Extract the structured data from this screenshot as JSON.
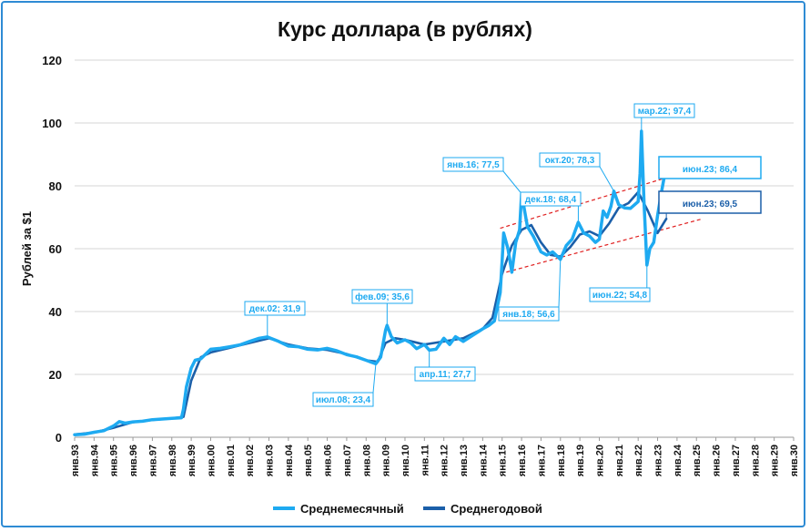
{
  "chart_data": {
    "type": "line",
    "title": "Курс доллара (в рублях)",
    "ylabel": "Рублей за $1",
    "xlabel": "",
    "ylim": [
      0,
      120
    ],
    "yticks": [
      0,
      20,
      40,
      60,
      80,
      100,
      120
    ],
    "grid": "horizontal",
    "legend": "bottom",
    "x_tick_labels": [
      "янв.93",
      "янв.94",
      "янв.95",
      "янв.96",
      "янв.97",
      "янв.98",
      "янв.99",
      "янв.00",
      "янв.01",
      "янв.02",
      "янв.03",
      "янв.04",
      "янв.05",
      "янв.06",
      "янв.07",
      "янв.08",
      "янв.09",
      "янв.10",
      "янв.11",
      "янв.12",
      "янв.13",
      "янв.14",
      "янв.15",
      "янв.16",
      "янв.17",
      "янв.18",
      "янв.19",
      "янв.20",
      "янв.21",
      "янв.22",
      "янв.23",
      "янв.24",
      "янв.25",
      "янв.26",
      "янв.27",
      "янв.28",
      "янв.29",
      "янв.30"
    ],
    "x_range": [
      1993,
      2030
    ],
    "series": [
      {
        "name": "Среднемесячный",
        "color": "#1eaaf1",
        "x": [
          1993.0,
          1993.5,
          1994.0,
          1994.5,
          1995.0,
          1995.3,
          1995.6,
          1996.0,
          1996.5,
          1997.0,
          1997.5,
          1998.0,
          1998.5,
          1998.6,
          1998.75,
          1999.0,
          1999.2,
          1999.5,
          2000.0,
          2000.5,
          2001.0,
          2001.5,
          2002.0,
          2002.5,
          2002.92,
          2003.5,
          2004.0,
          2004.5,
          2005.0,
          2005.5,
          2006.0,
          2006.5,
          2007.0,
          2007.5,
          2008.0,
          2008.3,
          2008.5,
          2008.75,
          2009.0,
          2009.08,
          2009.3,
          2009.6,
          2010.0,
          2010.3,
          2010.6,
          2011.0,
          2011.25,
          2011.6,
          2012.0,
          2012.3,
          2012.6,
          2013.0,
          2013.5,
          2014.0,
          2014.3,
          2014.6,
          2014.9,
          2015.0,
          2015.08,
          2015.3,
          2015.5,
          2015.7,
          2015.9,
          2016.0,
          2016.3,
          2016.6,
          2017.0,
          2017.3,
          2017.6,
          2018.0,
          2018.3,
          2018.6,
          2018.92,
          2019.2,
          2019.5,
          2019.8,
          2020.0,
          2020.2,
          2020.4,
          2020.6,
          2020.75,
          2021.0,
          2021.3,
          2021.6,
          2022.0,
          2022.1,
          2022.17,
          2022.3,
          2022.45,
          2022.6,
          2022.8,
          2023.0,
          2023.2,
          2023.45
        ],
        "y": [
          0.8,
          1.0,
          1.6,
          2.1,
          3.6,
          5.0,
          4.5,
          4.9,
          5.1,
          5.6,
          5.8,
          6.0,
          6.2,
          9.0,
          16.0,
          22.0,
          24.5,
          25.0,
          28.0,
          28.3,
          28.8,
          29.4,
          30.5,
          31.5,
          31.9,
          30.5,
          29.0,
          28.8,
          28.0,
          27.8,
          28.3,
          27.5,
          26.3,
          25.6,
          24.5,
          23.8,
          23.4,
          25.5,
          34.0,
          35.6,
          32.0,
          30.0,
          31.0,
          30.0,
          28.2,
          29.5,
          27.7,
          28.0,
          31.5,
          29.5,
          32.0,
          30.5,
          32.5,
          34.5,
          35.5,
          37.0,
          46.0,
          56.0,
          65.0,
          60.0,
          52.5,
          62.0,
          66.0,
          77.5,
          67.0,
          64.0,
          59.0,
          58.0,
          59.0,
          56.6,
          61.0,
          63.0,
          68.4,
          65.0,
          64.0,
          62.0,
          63.0,
          72.0,
          70.0,
          73.5,
          78.3,
          74.0,
          73.0,
          72.8,
          75.0,
          84.0,
          97.4,
          75.0,
          54.8,
          60.0,
          62.0,
          70.5,
          78.0,
          86.4
        ]
      },
      {
        "name": "Среднегодовой",
        "color": "#1b5fa9",
        "x": [
          1993.0,
          1994.0,
          1995.0,
          1996.0,
          1997.0,
          1998.0,
          1998.6,
          1999.0,
          1999.5,
          2000.0,
          2001.0,
          2002.0,
          2003.0,
          2004.0,
          2005.0,
          2006.0,
          2007.0,
          2008.0,
          2008.6,
          2009.0,
          2009.5,
          2010.0,
          2011.0,
          2011.5,
          2012.0,
          2013.0,
          2014.0,
          2014.5,
          2015.0,
          2015.5,
          2016.0,
          2016.5,
          2017.0,
          2017.5,
          2018.0,
          2018.5,
          2019.0,
          2019.5,
          2020.0,
          2020.5,
          2021.0,
          2021.5,
          2022.0,
          2022.5,
          2023.0,
          2023.45
        ],
        "y": [
          0.9,
          1.5,
          3.0,
          4.8,
          5.5,
          6.0,
          6.5,
          18.0,
          25.5,
          27.0,
          28.5,
          30.0,
          31.5,
          29.5,
          28.3,
          27.8,
          26.5,
          24.5,
          24.0,
          30.0,
          31.5,
          31.0,
          29.5,
          30.0,
          30.5,
          31.5,
          34.5,
          38.0,
          52.0,
          61.0,
          66.0,
          67.5,
          62.0,
          58.0,
          57.5,
          60.5,
          64.5,
          65.5,
          64.0,
          68.0,
          73.0,
          74.5,
          78.0,
          72.0,
          65.0,
          69.5
        ]
      }
    ],
    "annotations": [
      {
        "text": "дек.02; 31,9",
        "series": 0,
        "x": 2002.92,
        "y": 31.9,
        "size": "small"
      },
      {
        "text": "июл.08; 23,4",
        "series": 0,
        "x": 2008.5,
        "y": 23.4,
        "size": "small"
      },
      {
        "text": "фев.09; 35,6",
        "series": 0,
        "x": 2009.08,
        "y": 35.6,
        "size": "small"
      },
      {
        "text": "апр.11; 27,7",
        "series": 0,
        "x": 2011.25,
        "y": 27.7,
        "size": "small"
      },
      {
        "text": "янв.16; 77,5",
        "series": 0,
        "x": 2016.0,
        "y": 77.5,
        "size": "small"
      },
      {
        "text": "янв.18; 56,6",
        "series": 0,
        "x": 2018.0,
        "y": 56.6,
        "size": "small"
      },
      {
        "text": "дек.18; 68,4",
        "series": 0,
        "x": 2018.92,
        "y": 68.4,
        "size": "small"
      },
      {
        "text": "окт.20; 78,3",
        "series": 0,
        "x": 2020.75,
        "y": 78.3,
        "size": "small"
      },
      {
        "text": "мар.22; 97,4",
        "series": 0,
        "x": 2022.17,
        "y": 97.4,
        "size": "small"
      },
      {
        "text": "июн.22; 54,8",
        "series": 0,
        "x": 2022.45,
        "y": 54.8,
        "size": "small"
      },
      {
        "text": "июн.23; 86,4",
        "series": 0,
        "x": 2023.45,
        "y": 86.4,
        "size": "large"
      },
      {
        "text": "июн.23; 69,5",
        "series": 1,
        "x": 2023.45,
        "y": 69.5,
        "size": "large"
      }
    ],
    "trend_lines": [
      {
        "color": "#e02020",
        "style": "dashed",
        "x": [
          2014.9,
          2024.2
        ],
        "y": [
          66.5,
          84.0
        ]
      },
      {
        "color": "#e02020",
        "style": "dashed",
        "x": [
          2014.9,
          2025.3
        ],
        "y": [
          52.0,
          69.5
        ]
      }
    ]
  }
}
